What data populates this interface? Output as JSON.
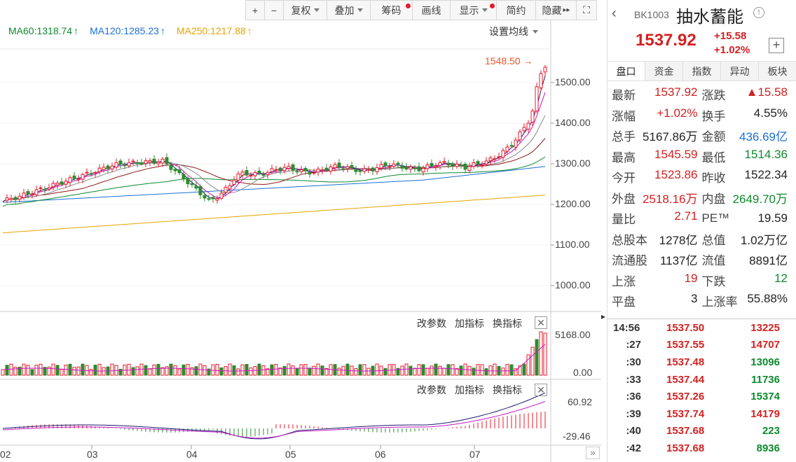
{
  "toolbar": {
    "plus": "+",
    "minus": "−",
    "items": [
      {
        "label": "复权",
        "dropdown": true,
        "dot": false
      },
      {
        "label": "叠加",
        "dropdown": true,
        "dot": false
      },
      {
        "label": "筹码",
        "dropdown": false,
        "dot": true
      },
      {
        "label": "画线",
        "dropdown": false,
        "dot": false
      },
      {
        "label": "显示",
        "dropdown": true,
        "dot": true
      },
      {
        "label": "简约",
        "dropdown": false,
        "dot": false
      },
      {
        "label": "隐藏",
        "dropdown": false,
        "dot": false
      }
    ],
    "hide_arrows": "▸▸",
    "fullscreen": "⛶"
  },
  "ma_legend": [
    {
      "label": "MA60:1318.74",
      "color": "#0d8a2e"
    },
    {
      "label": "MA120:1285.23",
      "color": "#1c6fd8"
    },
    {
      "label": "MA250:1217.88",
      "color": "#e8a400"
    }
  ],
  "ma_arrow": "↑",
  "ma_settings": "设置均线",
  "high_tag": "1548.50 →",
  "price_axis": [
    "1500.00",
    "1400.00",
    "1300.00",
    "1200.00",
    "1100.00",
    "1000.00"
  ],
  "volume_axis": [
    "5168.00",
    "0.00"
  ],
  "macd_axis": [
    "60.92",
    "-29.46"
  ],
  "indicator_buttons": [
    "改参数",
    "加指标",
    "换指标"
  ],
  "close_glyph": "✕",
  "months": [
    "02",
    "03",
    "04",
    "05",
    "06",
    "07"
  ],
  "scroll_glyph": "»",
  "panel_collapse": "▸",
  "quote": {
    "back": "‹",
    "code": "BK1003",
    "name": "抽水蓄能",
    "info": "!",
    "price": "1537.92",
    "change": "+15.58",
    "change_pct": "+1.02%",
    "add": "+"
  },
  "tabs": [
    "盘口",
    "资金",
    "指数",
    "异动",
    "板块"
  ],
  "stats": [
    [
      {
        "label": "最新",
        "value": "1537.92",
        "color": "red"
      },
      {
        "label": "涨跌",
        "value": "▲15.58",
        "color": "red"
      }
    ],
    [
      {
        "label": "涨幅",
        "value": "+1.02%",
        "color": "red"
      },
      {
        "label": "换手",
        "value": "4.55%",
        "color": "blk"
      }
    ],
    [
      {
        "label": "总手",
        "value": "5167.86万",
        "color": "blk"
      },
      {
        "label": "金额",
        "value": "436.69亿",
        "color": "blue"
      }
    ],
    [
      {
        "label": "最高",
        "value": "1545.59",
        "color": "red"
      },
      {
        "label": "最低",
        "value": "1514.36",
        "color": "green"
      }
    ],
    [
      {
        "label": "今开",
        "value": "1523.86",
        "color": "red"
      },
      {
        "label": "昨收",
        "value": "1522.34",
        "color": "blk"
      }
    ],
    [
      {
        "label": "外盘",
        "value": "2518.16万",
        "color": "red"
      },
      {
        "label": "内盘",
        "value": "2649.70万",
        "color": "green"
      }
    ],
    [
      {
        "label": "量比",
        "value": "2.71",
        "color": "red"
      },
      {
        "label": "PE™",
        "value": "19.59",
        "color": "blk"
      }
    ],
    [
      {
        "label": "总股本",
        "value": "1278亿",
        "color": "blk"
      },
      {
        "label": "总值",
        "value": "1.02万亿",
        "color": "blk"
      }
    ],
    [
      {
        "label": "流通股",
        "value": "1137亿",
        "color": "blk"
      },
      {
        "label": "流值",
        "value": "8891亿",
        "color": "blk"
      }
    ],
    [
      {
        "label": "上涨",
        "value": "19",
        "color": "red"
      },
      {
        "label": "下跌",
        "value": "12",
        "color": "green"
      }
    ],
    [
      {
        "label": "平盘",
        "value": "3",
        "color": "blk"
      },
      {
        "label": "上涨率",
        "value": "55.88%",
        "color": "blk"
      }
    ]
  ],
  "ticks": [
    {
      "time": "14:56",
      "price": "1537.50",
      "vol": "13225",
      "color": "red"
    },
    {
      "time": ":27",
      "price": "1537.55",
      "vol": "14707",
      "color": "red"
    },
    {
      "time": ":30",
      "price": "1537.48",
      "vol": "13096",
      "color": "green"
    },
    {
      "time": ":33",
      "price": "1537.44",
      "vol": "11736",
      "color": "green"
    },
    {
      "time": ":36",
      "price": "1537.26",
      "vol": "15374",
      "color": "green"
    },
    {
      "time": ":39",
      "price": "1537.74",
      "vol": "14179",
      "color": "red"
    },
    {
      "time": ":40",
      "price": "1537.68",
      "vol": "223",
      "color": "green"
    },
    {
      "time": ":42",
      "price": "1537.68",
      "vol": "8936",
      "color": "green"
    }
  ]
}
